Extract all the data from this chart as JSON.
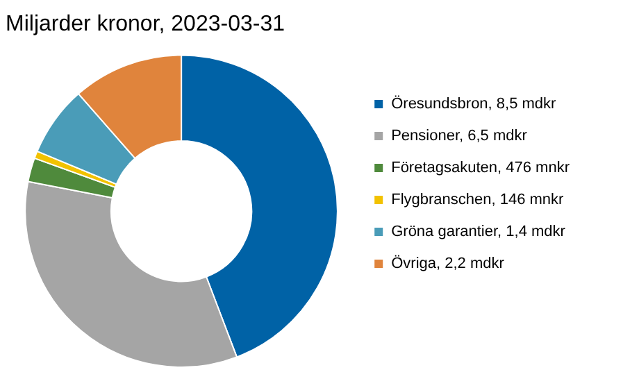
{
  "chart_data": {
    "type": "donut",
    "title": "Miljarder kronor, 2023-03-31",
    "categories": [
      "Öresundsbron, 8,5 mdkr",
      "Pensioner, 6,5 mdkr",
      "Företagsakuten, 476 mnkr",
      "Flygbranschen, 146 mnkr",
      "Gröna garantier, 1,4 mdkr",
      "Övriga, 2,2 mdkr"
    ],
    "values": [
      8.5,
      6.5,
      0.476,
      0.146,
      1.4,
      2.2
    ],
    "colors": [
      "#0062a6",
      "#a5a5a5",
      "#4f8a3c",
      "#f2c200",
      "#4a9cb8",
      "#e0843c"
    ],
    "legend": "right"
  }
}
